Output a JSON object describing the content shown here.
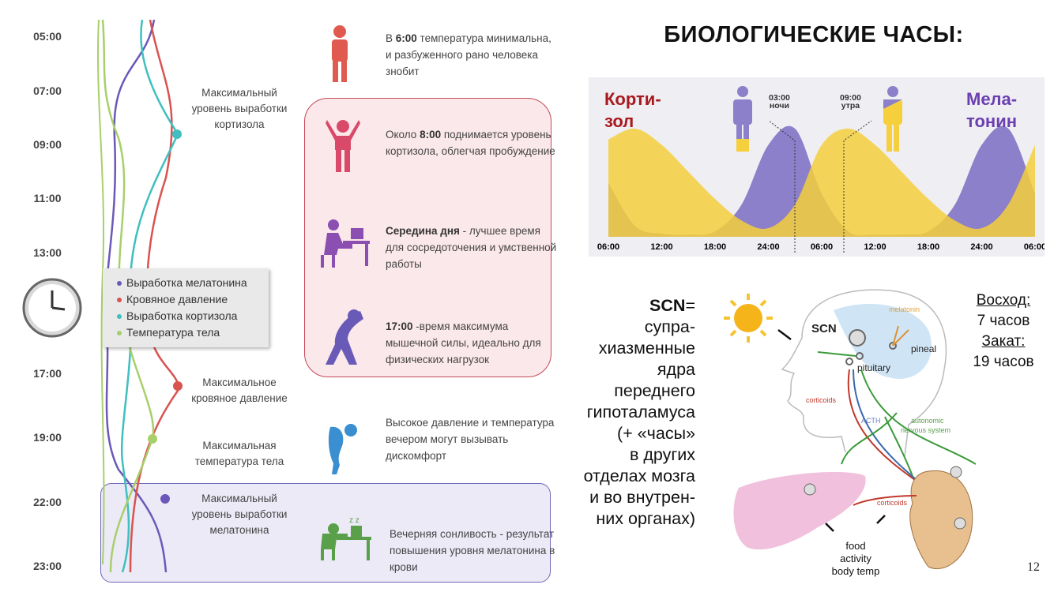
{
  "title": "БИОЛОГИЧЕСКИЕ ЧАСЫ:",
  "page_number": "12",
  "timeline": {
    "times": [
      "05:00",
      "07:00",
      "09:00",
      "11:00",
      "13:00",
      "17:00",
      "19:00",
      "22:00",
      "23:00"
    ],
    "legend": [
      {
        "label": "Выработка мелатонина",
        "color": "#6b58b8"
      },
      {
        "label": "Кровяное давление",
        "color": "#d9534f"
      },
      {
        "label": "Выработка кортизола",
        "color": "#3fbfc0"
      },
      {
        "label": "Температура тела",
        "color": "#a8cf6a"
      }
    ],
    "annotations": [
      "Максимальный уровень выработки кортизола",
      "Максимальное кровяное давление",
      "Максимальная температура тела",
      "Максимальный уровень выработки мелатонина"
    ]
  },
  "notes": [
    {
      "pre": "В ",
      "bold": "6:00",
      "post": " температура минимальна, и разбуженного рано человека знобит",
      "icon": "shivering-person-icon",
      "color": "#e05a4f"
    },
    {
      "pre": "Около ",
      "bold": "8:00",
      "post": " поднимается уровень кортизола, облегчая пробуждение",
      "icon": "waking-person-icon",
      "color": "#d94a6a"
    },
    {
      "pre": "",
      "bold": "Середина дня",
      "post": " - лучшее время для сосредоточения и умственной работы",
      "icon": "person-at-desk-icon",
      "color": "#8a4fb0"
    },
    {
      "pre": "",
      "bold": "17:00",
      "post": " -время максимума мышечной силы, идеально для физических нагрузок",
      "icon": "stretching-person-icon",
      "color": "#6a5ab8"
    },
    {
      "pre": "",
      "bold": "",
      "post": "Высокое давление и температура вечером могут вызывать дискомфорт",
      "icon": "bent-person-icon",
      "color": "#3a8fd0"
    },
    {
      "pre": "",
      "bold": "",
      "post": "Вечерняя сонливость - результат повышения уровня мелатонина в крови",
      "icon": "sleeping-at-desk-icon",
      "color": "#5aa04a"
    }
  ],
  "chart_data": {
    "type": "area",
    "x_ticks": [
      "06:00",
      "12:00",
      "18:00",
      "24:00",
      "06:00",
      "12:00",
      "18:00",
      "24:00",
      "06:00"
    ],
    "x": [
      "06:00",
      "09:00",
      "12:00",
      "15:00",
      "18:00",
      "21:00",
      "24:00",
      "03:00",
      "06:00",
      "09:00",
      "12:00",
      "15:00",
      "18:00",
      "21:00",
      "24:00",
      "03:00",
      "06:00"
    ],
    "series": [
      {
        "name": "Корти-зол",
        "color": "#f5cf3c",
        "values": [
          90,
          100,
          85,
          60,
          35,
          15,
          8,
          30,
          85,
          100,
          85,
          60,
          35,
          15,
          8,
          30,
          85
        ]
      },
      {
        "name": "Мела-тонин",
        "color": "#8b80c9",
        "values": [
          50,
          10,
          3,
          2,
          5,
          30,
          85,
          100,
          40,
          5,
          2,
          2,
          5,
          30,
          85,
          100,
          40
        ]
      }
    ],
    "series_labels": {
      "cortisol_line1": "Корти-",
      "cortisol_line2": "зол",
      "melatonin_line1": "Мела-",
      "melatonin_line2": "тонин"
    },
    "annotations": [
      {
        "time": "03:00",
        "label": "ночи"
      },
      {
        "time": "09:00",
        "label": "утра"
      }
    ],
    "ylim": [
      0,
      100
    ],
    "grid": false
  },
  "scn": {
    "bold": "SCN",
    "rest": "=",
    "lines": [
      "супра-",
      "хиазменные",
      "ядра",
      "переднего",
      "гипоталамуса",
      "(+ «часы»",
      "в других",
      "отделах мозга",
      "и во внутрен-",
      "них органах)"
    ]
  },
  "sun": {
    "rise_label": "Восход:",
    "rise_value": "7 часов",
    "set_label": "Закат:",
    "set_value": "19 часов"
  },
  "diagram": {
    "scn": "SCN",
    "melatonin": "melatonin",
    "pineal": "pineal",
    "pituitary": "pituitary",
    "corticoids": "corticoids",
    "acth": "ACTH",
    "autonomic1": "autonomic",
    "autonomic2": "nervous system",
    "corticoids2": "corticoids",
    "food": "food",
    "activity": "activity",
    "body_temp": "body temp"
  }
}
